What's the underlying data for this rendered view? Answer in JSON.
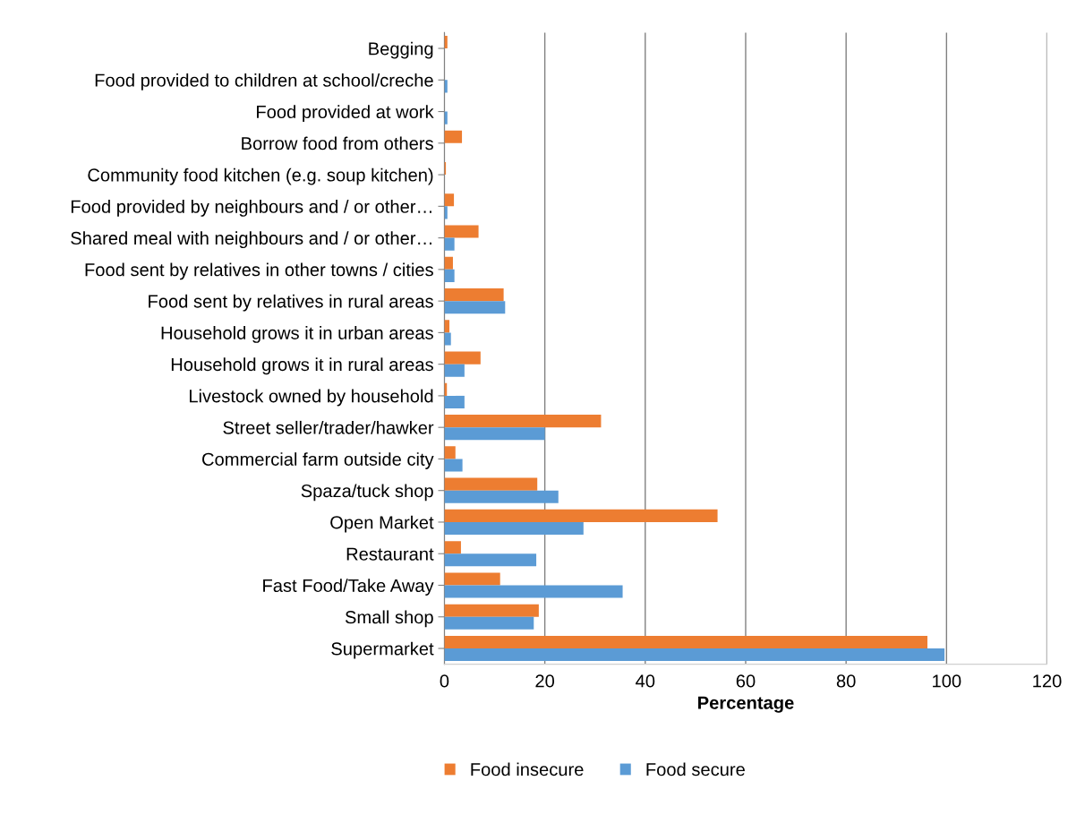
{
  "chart_data": {
    "type": "bar",
    "orientation": "horizontal",
    "xlabel": "Percentage",
    "categories": [
      "Begging",
      "Food provided to children at school/creche",
      "Food provided at work",
      "Borrow food from others",
      "Community food kitchen (e.g. soup kitchen)",
      "Food provided by neighbours and / or other…",
      "Shared meal with neighbours and / or other…",
      "Food sent by relatives in other towns / cities",
      "Food sent by relatives in rural areas",
      "Household grows it in urban areas",
      "Household grows it in rural areas",
      "Livestock owned by household",
      "Street seller/trader/hawker",
      "Commercial farm outside city",
      "Spaza/tuck shop",
      "Open Market",
      "Restaurant",
      "Fast Food/Take Away",
      "Small shop",
      "Supermarket"
    ],
    "series": [
      {
        "name": "Food insecure",
        "color": "#ed7d31",
        "values": [
          0.6,
          0,
          0,
          3.5,
          0.3,
          1.9,
          6.8,
          1.7,
          11.8,
          1.0,
          7.2,
          0.5,
          31.2,
          2.2,
          18.5,
          54.4,
          3.3,
          11.1,
          18.8,
          96.2
        ]
      },
      {
        "name": "Food secure",
        "color": "#5b9bd5",
        "values": [
          0,
          0.6,
          0.6,
          0,
          0,
          0.6,
          2.0,
          2.0,
          12.1,
          1.3,
          4.0,
          4.0,
          20.0,
          3.6,
          22.7,
          27.7,
          18.3,
          35.5,
          17.8,
          99.6
        ]
      }
    ],
    "xlim": [
      0,
      120
    ],
    "xticks": [
      0,
      20,
      40,
      60,
      80,
      100,
      120
    ],
    "grid": "x",
    "legend": "bottom"
  }
}
